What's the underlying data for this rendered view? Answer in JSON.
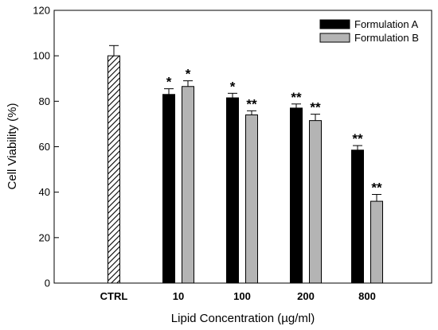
{
  "chart_data": {
    "type": "bar",
    "xlabel": "Lipid Concentration (µg/ml)",
    "ylabel": "Cell Viability (%)",
    "ylim": [
      0,
      120
    ],
    "yticks": [
      0,
      20,
      40,
      60,
      80,
      100,
      120
    ],
    "legend_position": "top-right",
    "grid": false,
    "control": {
      "category": "CTRL",
      "value": 100,
      "error": 4.5,
      "pattern": "hatched"
    },
    "categories": [
      "10",
      "100",
      "200",
      "800"
    ],
    "series": [
      {
        "name": "Formulation A",
        "color": "#000000",
        "values": [
          83,
          81.5,
          77,
          58.5
        ],
        "errors": [
          2.5,
          2,
          1.8,
          2
        ],
        "significance": [
          "*",
          "*",
          "**",
          "**"
        ]
      },
      {
        "name": "Formulation B",
        "color": "#b4b4b4",
        "values": [
          86.5,
          74,
          71.5,
          36
        ],
        "errors": [
          2.5,
          1.8,
          2.8,
          3
        ],
        "significance": [
          "*",
          "**",
          "**",
          "**"
        ]
      }
    ]
  }
}
